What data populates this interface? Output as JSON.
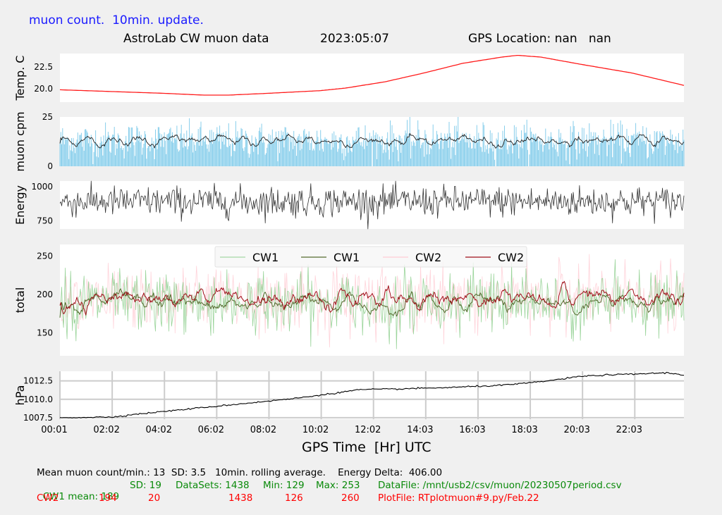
{
  "header": {
    "banner": "muon count.  10min. update.",
    "title": "AstroLab CW muon data",
    "date": "2023:05:07",
    "gps": "GPS Location: nan   nan"
  },
  "colors": {
    "banner": "#1a1aff",
    "temp": "#ff1a1a",
    "muon_bar": "#87ceeb",
    "muon_avg": "#222222",
    "energy": "#333333",
    "cw1_raw": "#8fcf8f",
    "cw1_avg": "#556b2f",
    "cw2_raw": "#ffc0cb",
    "cw2_avg": "#a0101a",
    "pressure": "#000000",
    "green_text": "#0a8a0a",
    "red_text": "#ff0000"
  },
  "xaxis": {
    "label": "GPS Time  [Hr] UTC",
    "ticks": [
      "00:01",
      "02:02",
      "04:02",
      "06:02",
      "08:02",
      "10:02",
      "12:02",
      "14:03",
      "16:03",
      "18:03",
      "20:03",
      "22:03"
    ]
  },
  "chart_data": [
    {
      "type": "line",
      "name": "temperature",
      "ylabel": "Temp. C",
      "yticks": [
        "22.5",
        "20.0"
      ],
      "ylim": [
        18.5,
        24.0
      ],
      "x_hours": [
        0,
        2,
        4,
        5.5,
        6.5,
        8,
        10,
        11,
        12.5,
        14,
        15.5,
        17,
        17.6,
        18.5,
        20,
        22,
        24
      ],
      "y": [
        19.9,
        19.7,
        19.5,
        19.3,
        19.3,
        19.5,
        19.8,
        20.1,
        20.8,
        21.8,
        22.9,
        23.6,
        23.8,
        23.6,
        22.8,
        21.8,
        20.4
      ]
    },
    {
      "type": "bar",
      "name": "muon cpm",
      "ylabel": "muon cpm",
      "yticks": [
        "25",
        "0"
      ],
      "ylim": [
        0,
        25
      ],
      "description_series": [
        "per-minute counts",
        "10min. rolling average"
      ],
      "mean": 13,
      "sd": 3.5
    },
    {
      "type": "line",
      "name": "energy",
      "ylabel": "Energy",
      "yticks": [
        "1000",
        "750"
      ],
      "ylim": [
        690,
        1040
      ],
      "center": 890,
      "delta": 406.0
    },
    {
      "type": "line",
      "name": "total",
      "ylabel": "total",
      "yticks": [
        "250",
        "200",
        "150"
      ],
      "ylim": [
        120,
        265
      ],
      "legend": [
        "CW1",
        "CW1",
        "CW2",
        "CW2"
      ],
      "legend_placement": "top-center",
      "series": [
        {
          "name": "CW1",
          "mean": 189,
          "sd": 19,
          "min": 129,
          "max": 253
        },
        {
          "name": "CW2",
          "mean": 194,
          "sd": 20,
          "min": 126,
          "max": 260
        }
      ]
    },
    {
      "type": "line",
      "name": "pressure",
      "ylabel": "hPa",
      "yticks": [
        "1012.5",
        "1010.0",
        "1007.5"
      ],
      "ylim": [
        1007.3,
        1013.8
      ],
      "grid": true,
      "x_hours": [
        0,
        2,
        3,
        5,
        7,
        9,
        10.5,
        11.5,
        13,
        15,
        17,
        18,
        19,
        20,
        21,
        22,
        23.3,
        24
      ],
      "y": [
        1007.5,
        1007.6,
        1008.0,
        1008.7,
        1009.4,
        1010.1,
        1010.8,
        1011.3,
        1011.4,
        1011.6,
        1011.9,
        1012.2,
        1012.6,
        1013.1,
        1013.3,
        1013.4,
        1013.6,
        1013.3
      ]
    }
  ],
  "footer": {
    "line1": "Mean muon count/min.: 13  SD: 3.5   10min. rolling average.    Energy Delta:  406.00",
    "cw1": {
      "label": "CW1 mean: 189",
      "sd": "SD: 19",
      "datasets": "DataSets: 1438",
      "min": "Min: 129",
      "max": "Max: 253",
      "file": "DataFile: /mnt/usb2/csv/muon/20230507period.csv"
    },
    "cw2": {
      "label": "CW2",
      "mean": "194",
      "sd": "20",
      "datasets": "1438",
      "min": "126",
      "max": "260",
      "file": "PlotFile: RTplotmuon#9.py/Feb.22"
    }
  }
}
